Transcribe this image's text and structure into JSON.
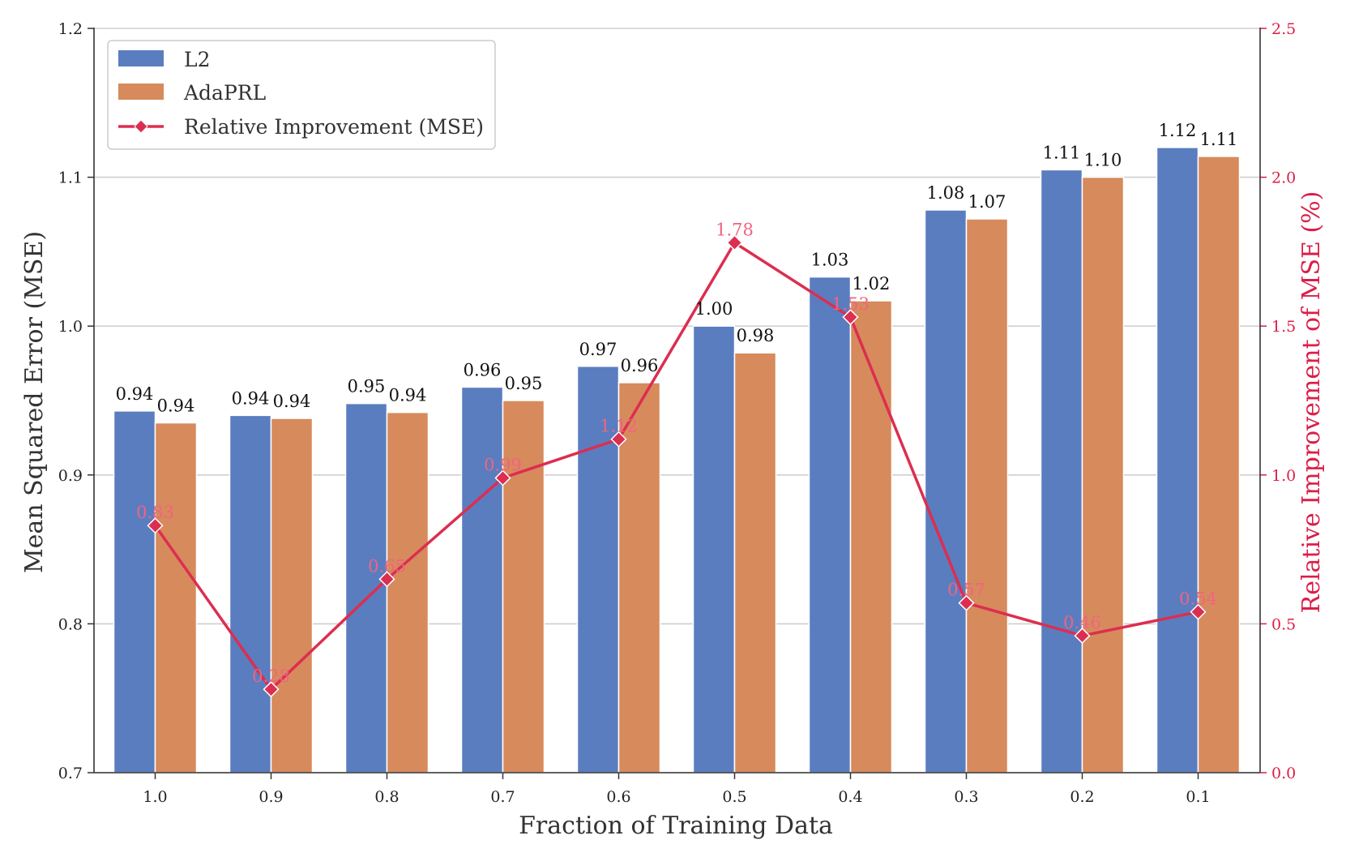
{
  "chart_data": {
    "type": "bar",
    "xlabel": "Fraction of Training Data",
    "ylabel": "Mean Squared Error (MSE)",
    "y2label": "Relative Improvement of MSE (%)",
    "categories": [
      "1.0",
      "0.9",
      "0.8",
      "0.7",
      "0.6",
      "0.5",
      "0.4",
      "0.3",
      "0.2",
      "0.1"
    ],
    "ylim": [
      0.7,
      1.2
    ],
    "yticks": [
      "0.7",
      "0.8",
      "0.9",
      "1.0",
      "1.1",
      "1.2"
    ],
    "y2lim": [
      0.0,
      2.5
    ],
    "y2ticks": [
      "0.0",
      "0.5",
      "1.0",
      "1.5",
      "2.0",
      "2.5"
    ],
    "grid": "horizontal",
    "legend_position": "top-left",
    "series": [
      {
        "name": "L2",
        "type": "bar",
        "axis": "left",
        "color": "#5a7dc0",
        "values": [
          0.943,
          0.94,
          0.948,
          0.959,
          0.973,
          1.0,
          1.033,
          1.078,
          1.105,
          1.12
        ],
        "labels": [
          "0.94",
          "0.94",
          "0.95",
          "0.96",
          "0.97",
          "1.00",
          "1.03",
          "1.08",
          "1.11",
          "1.12"
        ]
      },
      {
        "name": "AdaPRL",
        "type": "bar",
        "axis": "left",
        "color": "#d78a5c",
        "values": [
          0.935,
          0.938,
          0.942,
          0.95,
          0.962,
          0.982,
          1.017,
          1.072,
          1.1,
          1.114
        ],
        "labels": [
          "0.94",
          "0.94",
          "0.94",
          "0.95",
          "0.96",
          "0.98",
          "1.02",
          "1.07",
          "1.10",
          "1.11"
        ]
      },
      {
        "name": "Relative Improvement (MSE)",
        "type": "line",
        "axis": "right",
        "color": "#dc2e50",
        "marker": "diamond",
        "values": [
          0.83,
          0.28,
          0.65,
          0.99,
          1.12,
          1.78,
          1.53,
          0.57,
          0.46,
          0.54
        ],
        "labels": [
          "0.83",
          "0.28",
          "0.65",
          "0.99",
          "1.12",
          "1.78",
          "1.53",
          "0.57",
          "0.46",
          "0.54"
        ]
      }
    ]
  }
}
